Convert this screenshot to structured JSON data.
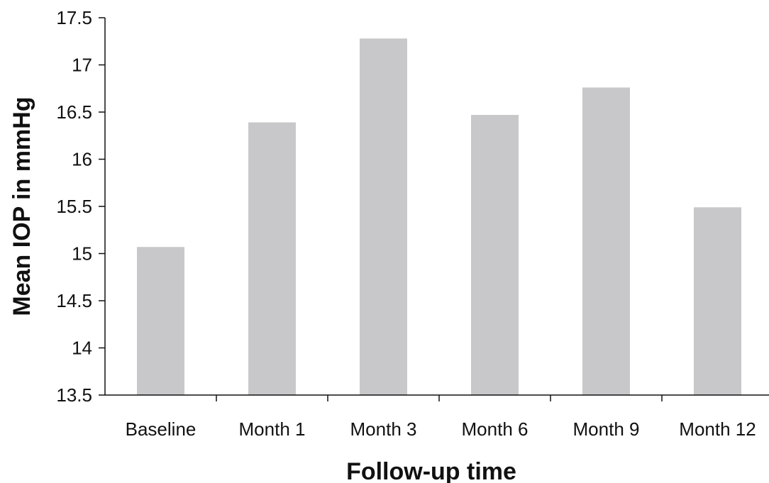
{
  "chart_data": {
    "type": "bar",
    "title": "",
    "xlabel": "Follow-up time",
    "ylabel": "Mean IOP in mmHg",
    "categories": [
      "Baseline",
      "Month 1",
      "Month 3",
      "Month 6",
      "Month 9",
      "Month 12"
    ],
    "values": [
      15.07,
      16.39,
      17.28,
      16.47,
      16.76,
      15.49
    ],
    "ylim": [
      13.5,
      17.5
    ],
    "yticks": [
      13.5,
      14,
      14.5,
      15,
      15.5,
      16,
      16.5,
      17,
      17.5
    ],
    "ytick_labels": [
      "13.5",
      "14",
      "14.5",
      "15",
      "15.5",
      "16",
      "16.5",
      "17",
      "17.5"
    ],
    "grid": false,
    "legend": "none",
    "bar_color": "#c8c8ca",
    "axis_color": "#111111"
  }
}
